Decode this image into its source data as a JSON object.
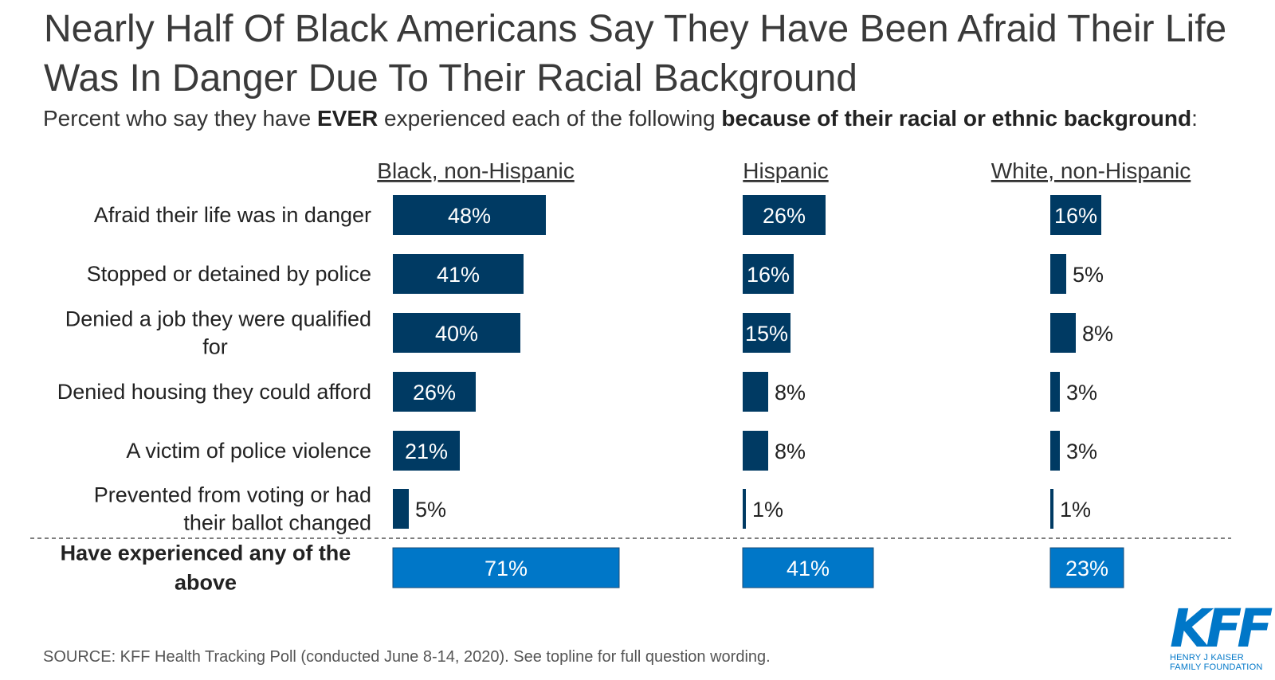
{
  "header": {
    "title": "Nearly Half Of Black Americans Say They Have Been Afraid Their Life Was In Danger Due To Their Racial Background",
    "subtitle_parts": [
      {
        "text": "Percent who say they have ",
        "bold": false
      },
      {
        "text": "EVER",
        "bold": true
      },
      {
        "text": " experienced each of the following ",
        "bold": false
      },
      {
        "text": "because of their racial or ethnic background",
        "bold": true
      },
      {
        "text": ":",
        "bold": false
      }
    ]
  },
  "chart_data": {
    "type": "bar",
    "orientation": "horizontal",
    "categories": [
      "Afraid their life was in danger",
      "Stopped or detained by police",
      "Denied a job they were qualified for",
      "Denied housing they could afford",
      "A victim of police violence",
      "Prevented from voting or had their ballot changed"
    ],
    "summary_category": "Have experienced any of the above",
    "series": [
      {
        "name": "Black, non-Hispanic",
        "values": [
          48,
          41,
          40,
          26,
          21,
          5
        ],
        "summary_value": 71
      },
      {
        "name": "Hispanic",
        "values": [
          26,
          16,
          15,
          8,
          8,
          1
        ],
        "summary_value": 41
      },
      {
        "name": "White, non-Hispanic",
        "values": [
          16,
          5,
          8,
          3,
          3,
          1
        ],
        "summary_value": 23
      }
    ],
    "value_suffix": "%",
    "colors": {
      "bar": "#003a63",
      "summary_bar": "#0077c8",
      "divider": "#555555"
    },
    "grid": false
  },
  "footer": {
    "source": "SOURCE: KFF Health Tracking Poll (conducted June 8-14, 2020). See topline for full question wording.",
    "logo_mark": "KFF",
    "logo_line1": "HENRY J KAISER",
    "logo_line2": "FAMILY FOUNDATION"
  }
}
